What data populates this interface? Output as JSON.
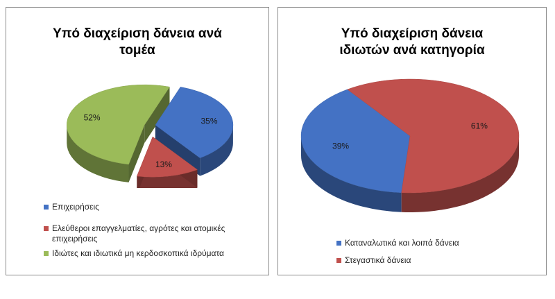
{
  "chart_data": [
    {
      "type": "pie",
      "title_lines": [
        "Υπό διαχείριση δάνεια ανά",
        "τομέα"
      ],
      "slices": [
        {
          "label": "Επιχειρήσεις",
          "value": 35,
          "value_label": "35%",
          "color": "#4472C4"
        },
        {
          "label": "Ελεύθεροι επαγγελματίες, αγρότες και ατομικές επιχειρήσεις",
          "value": 13,
          "value_label": "13%",
          "color": "#C0504D"
        },
        {
          "label": "Ιδιώτες και ιδιωτικά μη κερδοσκοπικά ιδρύματα",
          "value": 52,
          "value_label": "52%",
          "color": "#9BBB59"
        }
      ],
      "legend_lines": [
        [
          "Επιχειρήσεις"
        ],
        [
          "Ελεύθεροι επαγγελματίες, αγρότες και ατομικές",
          "επιχειρήσεις"
        ],
        [
          "Ιδιώτες και ιδιωτικά μη κερδοσκοπικά ιδρύματα"
        ]
      ],
      "legend_position": "bottom",
      "style": "3d-exploded"
    },
    {
      "type": "pie",
      "title_lines": [
        "Υπό διαχείριση  δάνεια",
        "ιδιωτών ανά κατηγορία"
      ],
      "slices": [
        {
          "label": "Καταναλωτικά και λοιπά δάνεια",
          "value": 39,
          "value_label": "39%",
          "color": "#4472C4"
        },
        {
          "label": "Στεγαστικά δάνεια",
          "value": 61,
          "value_label": "61%",
          "color": "#C0504D"
        }
      ],
      "legend_lines": [
        [
          "Καταναλωτικά και λοιπά δάνεια"
        ],
        [
          "Στεγαστικά δάνεια"
        ]
      ],
      "legend_position": "bottom",
      "style": "3d"
    }
  ]
}
